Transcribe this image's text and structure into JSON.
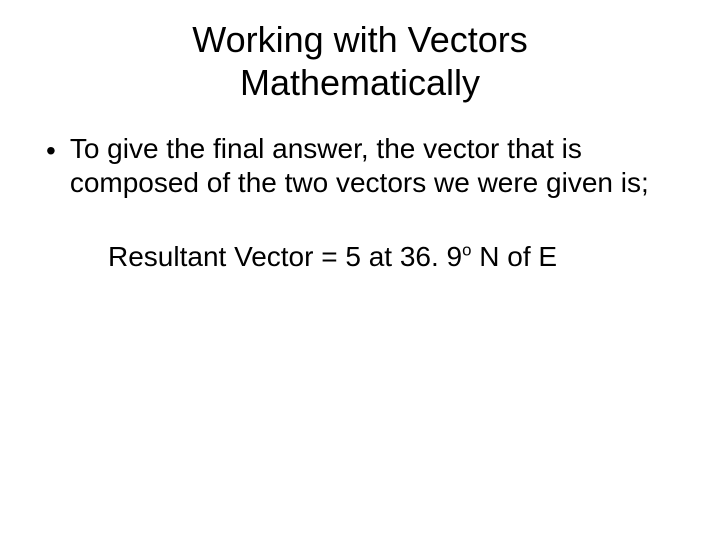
{
  "title_line1": "Working with Vectors",
  "title_line2": "Mathematically",
  "bullet": {
    "marker": "•",
    "text": "To give the final answer, the vector that is composed of the two vectors we were given is;"
  },
  "result": {
    "prefix": "Resultant Vector = 5 at 36. 9",
    "sup": "o",
    "suffix": " N of E"
  },
  "style": {
    "background_color": "#ffffff",
    "text_color": "#000000",
    "title_fontsize": 36,
    "body_fontsize": 28
  }
}
